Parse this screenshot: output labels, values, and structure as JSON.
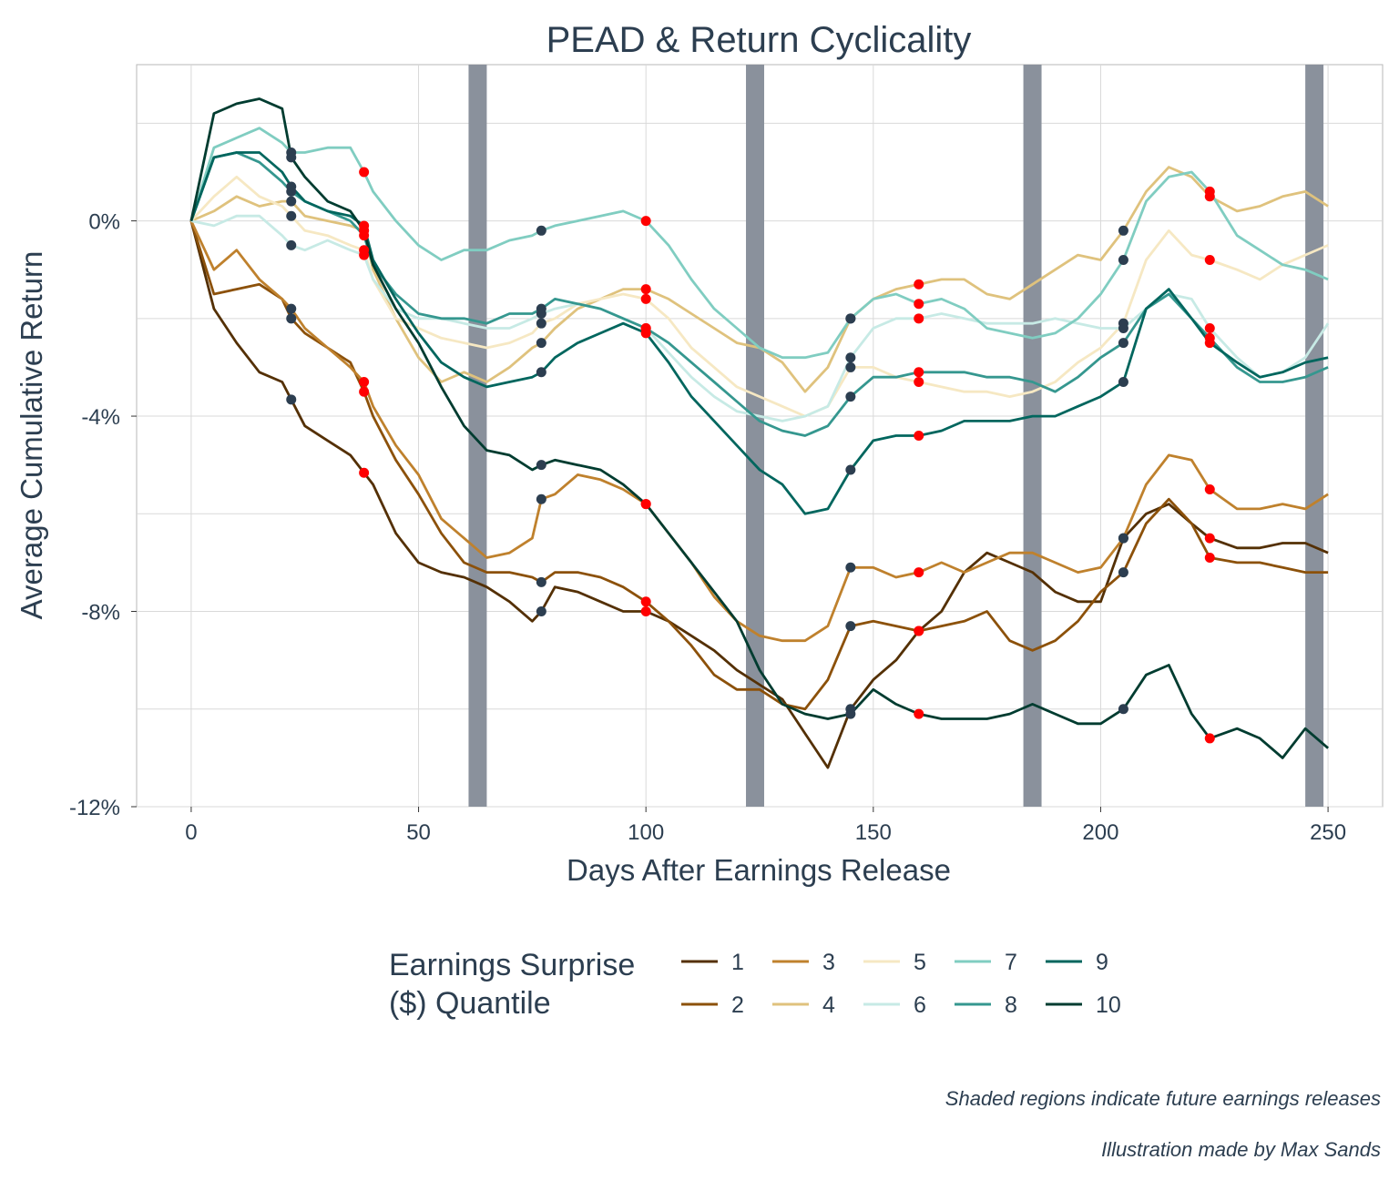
{
  "chart_data": {
    "type": "line",
    "title": "PEAD & Return Cyclicality",
    "xlabel": "Days After Earnings Release",
    "ylabel": "Average Cumulative Return",
    "xlim": [
      -12,
      262
    ],
    "ylim": [
      -12.0,
      3.2
    ],
    "x_ticks": [
      0,
      50,
      100,
      150,
      200,
      250
    ],
    "x_tick_labels": [
      "0",
      "50",
      "100",
      "150",
      "200",
      "250"
    ],
    "y_ticks": [
      0,
      -4,
      -8,
      -12
    ],
    "y_tick_labels": [
      "0%",
      "-4%",
      "-8%",
      "-12%"
    ],
    "y_minor_gridlines": [
      2,
      -2,
      -6,
      -10
    ],
    "grid": true,
    "legend": {
      "title": "Earnings Surprise\n($) Quantile",
      "position": "bottom",
      "entries": [
        "1",
        "2",
        "3",
        "4",
        "5",
        "6",
        "7",
        "8",
        "9",
        "10"
      ]
    },
    "shaded_regions": [
      [
        61,
        65
      ],
      [
        122,
        126
      ],
      [
        183,
        187
      ],
      [
        245,
        249
      ]
    ],
    "shaded_color": "#8a919c",
    "marker_colors": {
      "dark": "#2c3e50",
      "red": "#ff0000"
    },
    "marker_x": {
      "dark": [
        22,
        77,
        145,
        205
      ],
      "red": [
        38,
        100,
        160,
        224
      ]
    },
    "series": [
      {
        "name": "1",
        "color": "#543005",
        "x": [
          0,
          5,
          10,
          15,
          20,
          25,
          30,
          35,
          40,
          45,
          50,
          55,
          60,
          65,
          70,
          75,
          77,
          80,
          85,
          90,
          95,
          100,
          105,
          110,
          115,
          120,
          125,
          130,
          135,
          140,
          145,
          150,
          155,
          160,
          165,
          170,
          175,
          180,
          185,
          190,
          195,
          200,
          205,
          210,
          215,
          220,
          224,
          230,
          235,
          240,
          245,
          250
        ],
        "y": [
          0,
          -1.8,
          -2.5,
          -3.1,
          -3.3,
          -4.2,
          -4.5,
          -4.8,
          -5.4,
          -6.4,
          -7.0,
          -7.2,
          -7.3,
          -7.5,
          -7.8,
          -8.2,
          -8.0,
          -7.5,
          -7.6,
          -7.8,
          -8.0,
          -8.0,
          -8.2,
          -8.5,
          -8.8,
          -9.2,
          -9.5,
          -9.8,
          -10.5,
          -11.2,
          -10.0,
          -9.4,
          -9.0,
          -8.4,
          -8.0,
          -7.2,
          -6.8,
          -7.0,
          -7.2,
          -7.6,
          -7.8,
          -7.8,
          -6.5,
          -6.0,
          -5.8,
          -6.2,
          -6.5,
          -6.7,
          -6.7,
          -6.6,
          -6.6,
          -6.8
        ]
      },
      {
        "name": "2",
        "color": "#8c510a",
        "x": [
          0,
          5,
          10,
          15,
          20,
          22,
          25,
          30,
          35,
          38,
          40,
          45,
          50,
          55,
          60,
          65,
          70,
          75,
          77,
          80,
          85,
          90,
          95,
          100,
          105,
          110,
          115,
          120,
          125,
          130,
          135,
          140,
          145,
          150,
          155,
          160,
          165,
          170,
          175,
          180,
          185,
          190,
          195,
          200,
          205,
          210,
          215,
          220,
          224,
          230,
          235,
          240,
          245,
          250
        ],
        "y": [
          0,
          -1.5,
          -1.4,
          -1.3,
          -1.6,
          -2.0,
          -2.3,
          -2.6,
          -2.9,
          -3.5,
          -4.0,
          -4.9,
          -5.6,
          -6.4,
          -7.0,
          -7.2,
          -7.2,
          -7.3,
          -7.4,
          -7.2,
          -7.2,
          -7.3,
          -7.5,
          -7.8,
          -8.2,
          -8.7,
          -9.3,
          -9.6,
          -9.6,
          -9.9,
          -10.0,
          -9.4,
          -8.3,
          -8.2,
          -8.3,
          -8.4,
          -8.3,
          -8.2,
          -8.0,
          -8.6,
          -8.8,
          -8.6,
          -8.2,
          -7.6,
          -7.2,
          -6.2,
          -5.7,
          -6.2,
          -6.9,
          -7.0,
          -7.0,
          -7.1,
          -7.2,
          -7.2
        ]
      },
      {
        "name": "3",
        "color": "#bf812d",
        "x": [
          0,
          5,
          10,
          15,
          20,
          22,
          25,
          30,
          35,
          38,
          40,
          45,
          50,
          55,
          60,
          65,
          70,
          75,
          77,
          80,
          85,
          90,
          95,
          100,
          105,
          110,
          115,
          120,
          125,
          130,
          135,
          140,
          145,
          150,
          155,
          160,
          165,
          170,
          175,
          180,
          185,
          190,
          195,
          200,
          205,
          210,
          215,
          220,
          224,
          230,
          235,
          240,
          245,
          250
        ],
        "y": [
          0,
          -1.0,
          -0.6,
          -1.2,
          -1.6,
          -1.8,
          -2.2,
          -2.6,
          -3.0,
          -3.3,
          -3.8,
          -4.6,
          -5.2,
          -6.1,
          -6.5,
          -6.9,
          -6.8,
          -6.5,
          -5.7,
          -5.6,
          -5.2,
          -5.3,
          -5.5,
          -5.8,
          -6.4,
          -7.0,
          -7.7,
          -8.2,
          -8.5,
          -8.6,
          -8.6,
          -8.3,
          -7.1,
          -7.1,
          -7.3,
          -7.2,
          -7.0,
          -7.2,
          -7.0,
          -6.8,
          -6.8,
          -7.0,
          -7.2,
          -7.1,
          -6.5,
          -5.4,
          -4.8,
          -4.9,
          -5.5,
          -5.9,
          -5.9,
          -5.8,
          -5.9,
          -5.6
        ]
      },
      {
        "name": "4",
        "color": "#dfc27d",
        "x": [
          0,
          5,
          10,
          15,
          20,
          22,
          25,
          30,
          35,
          38,
          40,
          45,
          50,
          55,
          60,
          65,
          70,
          75,
          77,
          80,
          85,
          90,
          95,
          100,
          105,
          110,
          115,
          120,
          125,
          130,
          135,
          140,
          145,
          150,
          155,
          160,
          165,
          170,
          175,
          180,
          185,
          190,
          195,
          200,
          205,
          210,
          215,
          220,
          224,
          230,
          235,
          240,
          245,
          250
        ],
        "y": [
          0,
          0.2,
          0.5,
          0.3,
          0.4,
          0.4,
          0.1,
          0.0,
          -0.1,
          -0.2,
          -1.0,
          -2.0,
          -2.8,
          -3.3,
          -3.1,
          -3.3,
          -3.0,
          -2.6,
          -2.5,
          -2.2,
          -1.8,
          -1.6,
          -1.4,
          -1.4,
          -1.6,
          -1.9,
          -2.2,
          -2.5,
          -2.6,
          -2.9,
          -3.5,
          -3.0,
          -2.0,
          -1.6,
          -1.4,
          -1.3,
          -1.2,
          -1.2,
          -1.5,
          -1.6,
          -1.3,
          -1.0,
          -0.7,
          -0.8,
          -0.2,
          0.6,
          1.1,
          0.9,
          0.5,
          0.2,
          0.3,
          0.5,
          0.6,
          0.3
        ]
      },
      {
        "name": "5",
        "color": "#f6e8c3",
        "x": [
          0,
          5,
          10,
          15,
          20,
          22,
          25,
          30,
          35,
          38,
          40,
          45,
          50,
          55,
          60,
          65,
          70,
          75,
          77,
          80,
          85,
          90,
          95,
          100,
          105,
          110,
          115,
          120,
          125,
          130,
          135,
          140,
          145,
          150,
          155,
          160,
          165,
          170,
          175,
          180,
          185,
          190,
          195,
          200,
          205,
          210,
          215,
          220,
          224,
          230,
          235,
          240,
          245,
          250
        ],
        "y": [
          0,
          0.5,
          0.9,
          0.5,
          0.3,
          0.1,
          -0.2,
          -0.3,
          -0.5,
          -0.6,
          -1.2,
          -2.0,
          -2.2,
          -2.4,
          -2.5,
          -2.6,
          -2.5,
          -2.3,
          -2.1,
          -2.0,
          -1.7,
          -1.6,
          -1.5,
          -1.6,
          -2.0,
          -2.6,
          -3.0,
          -3.4,
          -3.6,
          -3.8,
          -4.0,
          -3.8,
          -3.0,
          -3.0,
          -3.2,
          -3.3,
          -3.4,
          -3.5,
          -3.5,
          -3.6,
          -3.5,
          -3.3,
          -2.9,
          -2.6,
          -2.1,
          -0.8,
          -0.2,
          -0.7,
          -0.8,
          -1.0,
          -1.2,
          -0.9,
          -0.7,
          -0.5
        ]
      },
      {
        "name": "6",
        "color": "#c7eae5",
        "x": [
          0,
          5,
          10,
          15,
          20,
          22,
          25,
          30,
          35,
          38,
          40,
          45,
          50,
          55,
          60,
          65,
          70,
          75,
          77,
          80,
          85,
          90,
          95,
          100,
          105,
          110,
          115,
          120,
          125,
          130,
          135,
          140,
          145,
          150,
          155,
          160,
          165,
          170,
          175,
          180,
          185,
          190,
          195,
          200,
          205,
          210,
          215,
          220,
          224,
          230,
          235,
          240,
          245,
          250
        ],
        "y": [
          0,
          -0.1,
          0.1,
          0.1,
          -0.3,
          -0.5,
          -0.6,
          -0.4,
          -0.6,
          -0.7,
          -1.2,
          -1.8,
          -2.0,
          -2.0,
          -2.1,
          -2.2,
          -2.2,
          -2.0,
          -1.9,
          -1.8,
          -1.7,
          -1.8,
          -2.0,
          -2.2,
          -2.7,
          -3.2,
          -3.6,
          -3.9,
          -4.0,
          -4.1,
          -4.0,
          -3.8,
          -2.8,
          -2.2,
          -2.0,
          -2.0,
          -1.9,
          -2.0,
          -2.1,
          -2.1,
          -2.1,
          -2.0,
          -2.1,
          -2.2,
          -2.2,
          -1.8,
          -1.5,
          -1.6,
          -2.2,
          -2.8,
          -3.2,
          -3.1,
          -2.8,
          -2.1
        ]
      },
      {
        "name": "7",
        "color": "#80cdc1",
        "x": [
          0,
          5,
          10,
          15,
          20,
          22,
          25,
          30,
          35,
          38,
          40,
          45,
          50,
          55,
          60,
          65,
          70,
          75,
          77,
          80,
          85,
          90,
          95,
          100,
          105,
          110,
          115,
          120,
          125,
          130,
          135,
          140,
          145,
          150,
          155,
          160,
          165,
          170,
          175,
          180,
          185,
          190,
          195,
          200,
          205,
          210,
          215,
          220,
          224,
          230,
          235,
          240,
          245,
          250
        ],
        "y": [
          0,
          1.5,
          1.7,
          1.9,
          1.6,
          1.4,
          1.4,
          1.5,
          1.5,
          1.0,
          0.6,
          0.0,
          -0.5,
          -0.8,
          -0.6,
          -0.6,
          -0.4,
          -0.3,
          -0.2,
          -0.1,
          0.0,
          0.1,
          0.2,
          0.0,
          -0.5,
          -1.2,
          -1.8,
          -2.2,
          -2.6,
          -2.8,
          -2.8,
          -2.7,
          -2.0,
          -1.6,
          -1.5,
          -1.7,
          -1.6,
          -1.8,
          -2.2,
          -2.3,
          -2.4,
          -2.3,
          -2.0,
          -1.5,
          -0.8,
          0.4,
          0.9,
          1.0,
          0.6,
          -0.3,
          -0.6,
          -0.9,
          -1.0,
          -1.2
        ]
      },
      {
        "name": "8",
        "color": "#35978f",
        "x": [
          0,
          5,
          10,
          15,
          20,
          22,
          25,
          30,
          35,
          38,
          40,
          45,
          50,
          55,
          60,
          65,
          70,
          75,
          77,
          80,
          85,
          90,
          95,
          100,
          105,
          110,
          115,
          120,
          125,
          130,
          135,
          140,
          145,
          150,
          155,
          160,
          165,
          170,
          175,
          180,
          185,
          190,
          195,
          200,
          205,
          210,
          215,
          220,
          224,
          230,
          235,
          240,
          245,
          250
        ],
        "y": [
          0,
          1.3,
          1.4,
          1.2,
          0.8,
          0.6,
          0.4,
          0.2,
          0.0,
          -0.3,
          -0.9,
          -1.5,
          -1.9,
          -2.0,
          -2.0,
          -2.1,
          -1.9,
          -1.9,
          -1.8,
          -1.6,
          -1.7,
          -1.8,
          -2.0,
          -2.2,
          -2.5,
          -2.9,
          -3.3,
          -3.7,
          -4.1,
          -4.3,
          -4.4,
          -4.2,
          -3.6,
          -3.2,
          -3.2,
          -3.1,
          -3.1,
          -3.1,
          -3.2,
          -3.2,
          -3.3,
          -3.5,
          -3.2,
          -2.8,
          -2.5,
          -1.8,
          -1.5,
          -2.0,
          -2.4,
          -3.0,
          -3.3,
          -3.3,
          -3.2,
          -3.0
        ]
      },
      {
        "name": "9",
        "color": "#01665e",
        "x": [
          0,
          5,
          10,
          15,
          20,
          22,
          25,
          30,
          35,
          38,
          40,
          45,
          50,
          55,
          60,
          65,
          70,
          75,
          77,
          80,
          85,
          90,
          95,
          100,
          105,
          110,
          115,
          120,
          125,
          130,
          135,
          140,
          145,
          150,
          155,
          160,
          165,
          170,
          175,
          180,
          185,
          190,
          195,
          200,
          205,
          210,
          215,
          220,
          224,
          230,
          235,
          240,
          245,
          250
        ],
        "y": [
          0,
          1.3,
          1.4,
          1.4,
          1.0,
          0.7,
          0.4,
          0.2,
          0.1,
          -0.1,
          -0.8,
          -1.6,
          -2.3,
          -2.9,
          -3.2,
          -3.4,
          -3.3,
          -3.2,
          -3.1,
          -2.8,
          -2.5,
          -2.3,
          -2.1,
          -2.3,
          -2.9,
          -3.6,
          -4.1,
          -4.6,
          -5.1,
          -5.4,
          -6.0,
          -5.9,
          -5.1,
          -4.5,
          -4.4,
          -4.4,
          -4.3,
          -4.1,
          -4.1,
          -4.1,
          -4.0,
          -4.0,
          -3.8,
          -3.6,
          -3.3,
          -1.8,
          -1.4,
          -2.0,
          -2.5,
          -2.9,
          -3.2,
          -3.1,
          -2.9,
          -2.8
        ]
      },
      {
        "name": "10",
        "color": "#003c30",
        "x": [
          0,
          5,
          10,
          15,
          20,
          22,
          25,
          30,
          35,
          38,
          40,
          45,
          50,
          55,
          60,
          65,
          70,
          75,
          77,
          80,
          85,
          90,
          95,
          100,
          105,
          110,
          115,
          120,
          125,
          130,
          135,
          140,
          145,
          150,
          155,
          160,
          165,
          170,
          175,
          180,
          185,
          190,
          195,
          200,
          205,
          210,
          215,
          220,
          224,
          230,
          235,
          240,
          245,
          250
        ],
        "y": [
          0,
          2.2,
          2.4,
          2.5,
          2.3,
          1.3,
          0.9,
          0.4,
          0.2,
          -0.2,
          -0.9,
          -1.8,
          -2.5,
          -3.4,
          -4.2,
          -4.7,
          -4.8,
          -5.1,
          -5.0,
          -4.9,
          -5.0,
          -5.1,
          -5.4,
          -5.8,
          -6.4,
          -7.0,
          -7.6,
          -8.2,
          -9.2,
          -9.9,
          -10.1,
          -10.2,
          -10.1,
          -9.6,
          -9.9,
          -10.1,
          -10.2,
          -10.2,
          -10.2,
          -10.1,
          -9.9,
          -10.1,
          -10.3,
          -10.3,
          -10.0,
          -9.3,
          -9.1,
          -10.1,
          -10.6,
          -10.4,
          -10.6,
          -11.0,
          -10.4,
          -10.8
        ]
      }
    ],
    "caption": [
      "Shaded regions indicate future earnings releases",
      "Illustration made by Max Sands"
    ]
  }
}
